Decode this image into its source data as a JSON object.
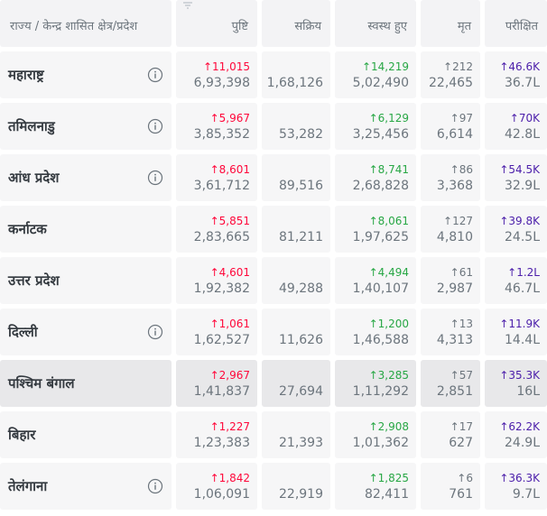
{
  "colors": {
    "confirmed": "#ff073a",
    "recovered": "#28a745",
    "deceased": "#6c757d",
    "tested": "#4b1eaa",
    "cell_bg": "#f6f6f7",
    "cell_bg_highlight": "#e8e8ea"
  },
  "header": {
    "state": "राज्य / केन्द्र शासित क्षेत्र/प्रदेश",
    "confirmed": "पुष्टि",
    "active": "सक्रिय",
    "recovered": "स्वस्थ हुए",
    "deceased": "मृत",
    "tested": "परीक्षित"
  },
  "rows": [
    {
      "name": "महाराष्ट्र",
      "info": true,
      "confirmed_delta": "↑11,015",
      "confirmed": "6,93,398",
      "active": "1,68,126",
      "recovered_delta": "↑14,219",
      "recovered": "5,02,490",
      "deceased_delta": "↑212",
      "deceased": "22,465",
      "tested_delta": "↑46.6K",
      "tested": "36.7L"
    },
    {
      "name": "तमिलनाडु",
      "info": true,
      "confirmed_delta": "↑5,967",
      "confirmed": "3,85,352",
      "active": "53,282",
      "recovered_delta": "↑6,129",
      "recovered": "3,25,456",
      "deceased_delta": "↑97",
      "deceased": "6,614",
      "tested_delta": "↑70K",
      "tested": "42.8L"
    },
    {
      "name": "आंध प्रदेश",
      "info": true,
      "confirmed_delta": "↑8,601",
      "confirmed": "3,61,712",
      "active": "89,516",
      "recovered_delta": "↑8,741",
      "recovered": "2,68,828",
      "deceased_delta": "↑86",
      "deceased": "3,368",
      "tested_delta": "↑54.5K",
      "tested": "32.9L"
    },
    {
      "name": "कर्नाटक",
      "info": false,
      "confirmed_delta": "↑5,851",
      "confirmed": "2,83,665",
      "active": "81,211",
      "recovered_delta": "↑8,061",
      "recovered": "1,97,625",
      "deceased_delta": "↑127",
      "deceased": "4,810",
      "tested_delta": "↑39.8K",
      "tested": "24.5L"
    },
    {
      "name": "उत्तर प्रदेश",
      "info": false,
      "confirmed_delta": "↑4,601",
      "confirmed": "1,92,382",
      "active": "49,288",
      "recovered_delta": "↑4,494",
      "recovered": "1,40,107",
      "deceased_delta": "↑61",
      "deceased": "2,987",
      "tested_delta": "↑1.2L",
      "tested": "46.7L"
    },
    {
      "name": "दिल्ली",
      "info": true,
      "confirmed_delta": "↑1,061",
      "confirmed": "1,62,527",
      "active": "11,626",
      "recovered_delta": "↑1,200",
      "recovered": "1,46,588",
      "deceased_delta": "↑13",
      "deceased": "4,313",
      "tested_delta": "↑11.9K",
      "tested": "14.4L"
    },
    {
      "name": "पश्चिम बंगाल",
      "info": false,
      "highlight": true,
      "confirmed_delta": "↑2,967",
      "confirmed": "1,41,837",
      "active": "27,694",
      "recovered_delta": "↑3,285",
      "recovered": "1,11,292",
      "deceased_delta": "↑57",
      "deceased": "2,851",
      "tested_delta": "↑35.3K",
      "tested": "16L"
    },
    {
      "name": "बिहार",
      "info": false,
      "confirmed_delta": "↑1,227",
      "confirmed": "1,23,383",
      "active": "21,393",
      "recovered_delta": "↑2,908",
      "recovered": "1,01,362",
      "deceased_delta": "↑17",
      "deceased": "627",
      "tested_delta": "↑62.2K",
      "tested": "24.9L"
    },
    {
      "name": "तेलंगाना",
      "info": true,
      "confirmed_delta": "↑1,842",
      "confirmed": "1,06,091",
      "active": "22,919",
      "recovered_delta": "↑1,825",
      "recovered": "82,411",
      "deceased_delta": "↑6",
      "deceased": "761",
      "tested_delta": "↑36.3K",
      "tested": "9.7L"
    }
  ]
}
